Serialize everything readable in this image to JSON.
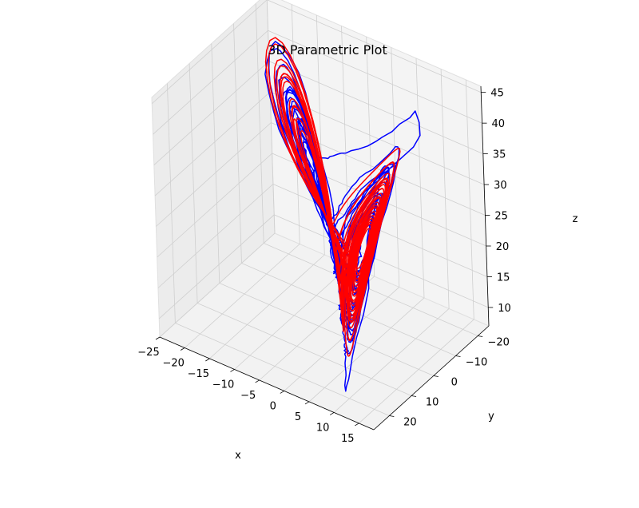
{
  "chart_data": {
    "type": "line",
    "projection": "3d",
    "title": "3D Parametric Plot",
    "xlabel": "x",
    "ylabel": "y",
    "zlabel": "z",
    "xlim": [
      -25,
      18
    ],
    "ylim": [
      -25,
      27
    ],
    "zlim": [
      7,
      46
    ],
    "xticks": [
      "−25",
      "−20",
      "−15",
      "−10",
      "−5",
      "0",
      "5",
      "10",
      "15"
    ],
    "yticks": [
      "−20",
      "−10",
      "0",
      "10",
      "20"
    ],
    "zticks": [
      "10",
      "15",
      "20",
      "25",
      "30",
      "35",
      "40",
      "45"
    ],
    "grid": true,
    "pane_color": "#f2f2f2",
    "series": [
      {
        "color": "#0000ff",
        "description": "noisy chaotic trajectory (Lorenz-like, perturbed)"
      },
      {
        "color": "#ff0000",
        "description": "smooth Lorenz attractor trajectory"
      }
    ]
  }
}
